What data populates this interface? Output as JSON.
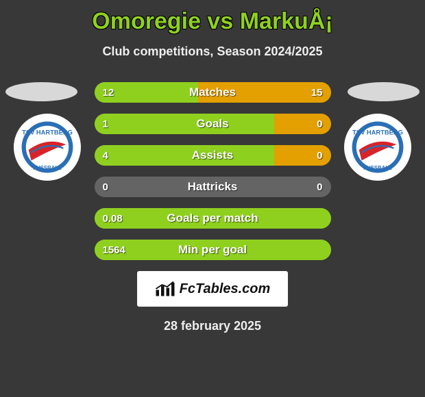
{
  "title": "Omoregie vs MarkuÅ¡",
  "subtitle": "Club competitions, Season 2024/2025",
  "date": "28 february 2025",
  "logo_text": "FcTables.com",
  "colors": {
    "left_bar": "#8fd01f",
    "right_bar": "#e3a000",
    "track": "#646464",
    "oval_left": "#d8d8d8",
    "oval_right": "#d8d8d8",
    "badge_bg": "#ffffff"
  },
  "club_badge": {
    "name": "tsv-hartberg",
    "ring_outer": "#2a6fb6",
    "ring_inner": "#ffffff",
    "swoosh": "#d8232a",
    "text_color": "#2a6fb6"
  },
  "rows": [
    {
      "label": "Matches",
      "left_value": "12",
      "right_value": "15",
      "left_pct": 44,
      "right_pct": 56
    },
    {
      "label": "Goals",
      "left_value": "1",
      "right_value": "0",
      "left_pct": 76,
      "right_pct": 24
    },
    {
      "label": "Assists",
      "left_value": "4",
      "right_value": "0",
      "left_pct": 76,
      "right_pct": 24
    },
    {
      "label": "Hattricks",
      "left_value": "0",
      "right_value": "0",
      "left_pct": 0,
      "right_pct": 0
    },
    {
      "label": "Goals per match",
      "left_value": "0.08",
      "right_value": "",
      "left_pct": 100,
      "right_pct": 0
    },
    {
      "label": "Min per goal",
      "left_value": "1564",
      "right_value": "",
      "left_pct": 100,
      "right_pct": 0
    }
  ]
}
